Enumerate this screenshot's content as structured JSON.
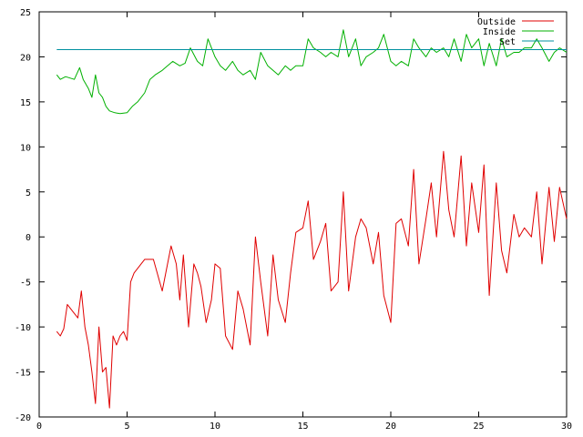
{
  "chart_data": {
    "type": "line",
    "title": "",
    "xlabel": "",
    "ylabel": "",
    "xlim": [
      0,
      30
    ],
    "ylim": [
      -20,
      25
    ],
    "x_ticks": [
      0,
      5,
      10,
      15,
      20,
      25,
      30
    ],
    "y_ticks": [
      -20,
      -15,
      -10,
      -5,
      0,
      5,
      10,
      15,
      20,
      25
    ],
    "x_tick_labels": [
      "0",
      "5",
      "10",
      "15",
      "20",
      "25",
      "30"
    ],
    "y_tick_labels": [
      "-20",
      "-15",
      "-10",
      "-5",
      "0",
      "5",
      "10",
      "15",
      "20",
      "25"
    ],
    "grid": false,
    "legend_position": "top-right",
    "series": [
      {
        "name": "Outside",
        "color": "#e00000",
        "x": [
          1.0,
          1.2,
          1.4,
          1.6,
          1.8,
          2.0,
          2.2,
          2.4,
          2.6,
          2.8,
          3.0,
          3.2,
          3.4,
          3.6,
          3.8,
          4.0,
          4.2,
          4.4,
          4.6,
          4.8,
          5.0,
          5.2,
          5.4,
          5.6,
          5.8,
          6.0,
          6.5,
          7.0,
          7.5,
          7.8,
          8.0,
          8.2,
          8.5,
          8.8,
          9.0,
          9.2,
          9.5,
          9.8,
          10.0,
          10.3,
          10.6,
          11.0,
          11.3,
          11.6,
          12.0,
          12.3,
          12.6,
          13.0,
          13.3,
          13.6,
          14.0,
          14.3,
          14.6,
          15.0,
          15.3,
          15.6,
          16.0,
          16.3,
          16.6,
          17.0,
          17.3,
          17.6,
          18.0,
          18.3,
          18.6,
          19.0,
          19.3,
          19.6,
          20.0,
          20.3,
          20.6,
          21.0,
          21.3,
          21.6,
          22.0,
          22.3,
          22.6,
          23.0,
          23.3,
          23.6,
          24.0,
          24.3,
          24.6,
          25.0,
          25.3,
          25.6,
          26.0,
          26.3,
          26.6,
          27.0,
          27.3,
          27.6,
          28.0,
          28.3,
          28.6,
          29.0,
          29.3,
          29.6,
          30.0
        ],
        "values": [
          -10.5,
          -11.0,
          -10.2,
          -7.5,
          -8.0,
          -8.5,
          -9.0,
          -6.0,
          -10.0,
          -12.0,
          -15.0,
          -18.5,
          -10.0,
          -15.0,
          -14.5,
          -19.0,
          -11.0,
          -12.0,
          -11.0,
          -10.5,
          -11.5,
          -5.0,
          -4.0,
          -3.5,
          -3.0,
          -2.5,
          -2.5,
          -6.0,
          -1.0,
          -3.0,
          -7.0,
          -2.0,
          -10.0,
          -3.0,
          -4.0,
          -5.5,
          -9.5,
          -7.0,
          -3.0,
          -3.5,
          -11.0,
          -12.5,
          -6.0,
          -8.0,
          -12.0,
          0.0,
          -5.0,
          -11.0,
          -2.0,
          -7.0,
          -9.5,
          -4.0,
          0.5,
          1.0,
          4.0,
          -2.5,
          -0.5,
          1.5,
          -6.0,
          -5.0,
          5.0,
          -6.0,
          0.0,
          2.0,
          1.0,
          -3.0,
          0.5,
          -6.5,
          -9.5,
          1.5,
          2.0,
          -1.0,
          7.5,
          -3.0,
          2.0,
          6.0,
          0.0,
          9.5,
          3.0,
          0.0,
          9.0,
          -1.0,
          6.0,
          0.5,
          8.0,
          -6.5,
          6.0,
          -1.5,
          -4.0,
          2.5,
          0.0,
          1.0,
          0.0,
          5.0,
          -3.0,
          5.5,
          -0.5,
          5.5,
          2.0
        ]
      },
      {
        "name": "Inside",
        "color": "#00b000",
        "x": [
          1.0,
          1.2,
          1.5,
          2.0,
          2.3,
          2.5,
          2.8,
          3.0,
          3.2,
          3.4,
          3.6,
          3.8,
          4.0,
          4.3,
          4.6,
          5.0,
          5.3,
          5.6,
          6.0,
          6.3,
          6.6,
          7.0,
          7.3,
          7.6,
          8.0,
          8.3,
          8.6,
          9.0,
          9.3,
          9.6,
          10.0,
          10.3,
          10.6,
          11.0,
          11.3,
          11.6,
          12.0,
          12.3,
          12.6,
          13.0,
          13.3,
          13.6,
          14.0,
          14.3,
          14.6,
          15.0,
          15.3,
          15.6,
          16.0,
          16.3,
          16.6,
          17.0,
          17.3,
          17.6,
          18.0,
          18.3,
          18.6,
          19.0,
          19.3,
          19.6,
          20.0,
          20.3,
          20.6,
          21.0,
          21.3,
          21.6,
          22.0,
          22.3,
          22.6,
          23.0,
          23.3,
          23.6,
          24.0,
          24.3,
          24.6,
          25.0,
          25.3,
          25.6,
          26.0,
          26.3,
          26.6,
          27.0,
          27.3,
          27.6,
          28.0,
          28.3,
          28.6,
          29.0,
          29.3,
          29.6,
          30.0
        ],
        "values": [
          18.0,
          17.5,
          17.8,
          17.5,
          18.8,
          17.5,
          16.5,
          15.5,
          18.0,
          16.0,
          15.5,
          14.5,
          14.0,
          13.8,
          13.7,
          13.8,
          14.5,
          15.0,
          16.0,
          17.5,
          18.0,
          18.5,
          19.0,
          19.5,
          19.0,
          19.3,
          21.0,
          19.5,
          19.0,
          22.0,
          20.0,
          19.0,
          18.5,
          19.5,
          18.5,
          18.0,
          18.5,
          17.5,
          20.5,
          19.0,
          18.5,
          18.0,
          19.0,
          18.5,
          19.0,
          19.0,
          22.0,
          21.0,
          20.5,
          20.0,
          20.5,
          20.0,
          23.0,
          20.0,
          22.0,
          19.0,
          20.0,
          20.5,
          21.0,
          22.5,
          19.5,
          19.0,
          19.5,
          19.0,
          22.0,
          21.0,
          20.0,
          21.0,
          20.5,
          21.0,
          20.0,
          22.0,
          19.5,
          22.5,
          21.0,
          22.0,
          19.0,
          21.5,
          19.0,
          22.0,
          20.0,
          20.5,
          20.5,
          21.0,
          21.0,
          22.0,
          21.0,
          19.5,
          20.5,
          21.0,
          20.5
        ]
      },
      {
        "name": "Set",
        "color": "#0090a0",
        "x": [
          1.0,
          30.0
        ],
        "values": [
          20.8,
          20.8
        ]
      }
    ]
  }
}
